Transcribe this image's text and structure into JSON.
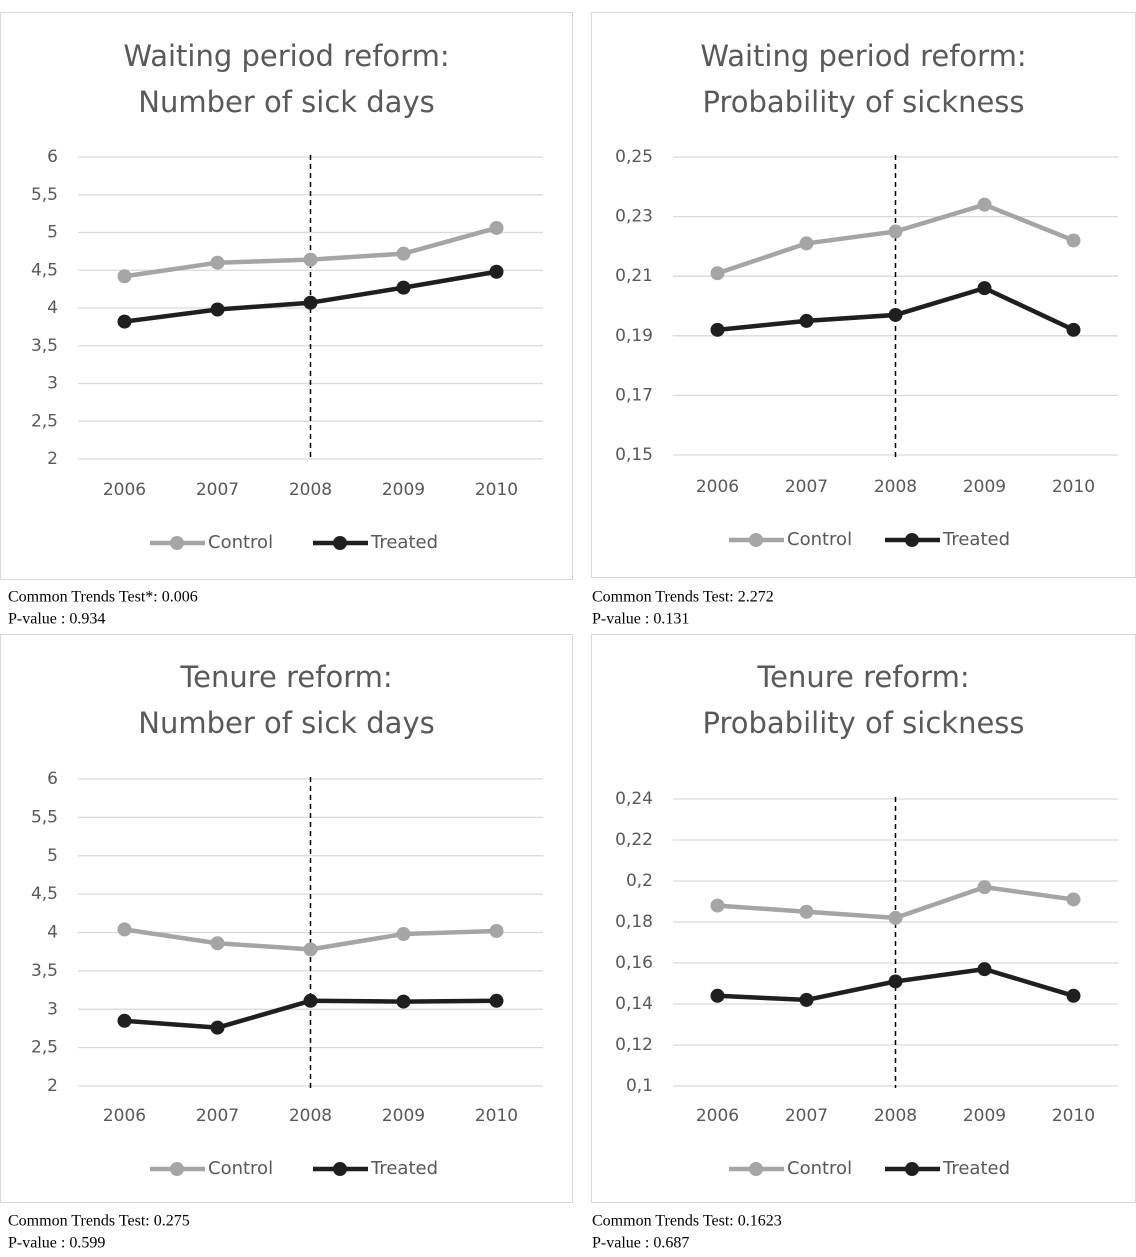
{
  "chart_data": [
    {
      "type": "line",
      "title": [
        "Waiting period reform:",
        "Number of sick days"
      ],
      "categories": [
        "2006",
        "2007",
        "2008",
        "2009",
        "2010"
      ],
      "series": [
        {
          "name": "Control",
          "color": "#a5a5a5",
          "values": [
            4.42,
            4.6,
            4.64,
            4.72,
            5.06
          ]
        },
        {
          "name": "Treated",
          "color": "#1f1f1f",
          "values": [
            3.82,
            3.98,
            4.07,
            4.27,
            4.48
          ]
        }
      ],
      "ylim": [
        2,
        6
      ],
      "yticks": [
        2,
        {
          "value": 2.5,
          "label": "2,5"
        },
        3,
        {
          "value": 3.5,
          "label": "3,5"
        },
        4,
        {
          "value": 4.5,
          "label": "4,5"
        },
        5,
        {
          "value": 5.5,
          "label": "5,5"
        },
        6
      ],
      "grid": true,
      "legend": "bottom",
      "vline": "2008",
      "notes": [
        "Common Trends Test*: 0.006",
        "P-value : 0.934"
      ]
    },
    {
      "type": "line",
      "title": [
        "Waiting period reform:",
        "Probability of sickness"
      ],
      "categories": [
        "2006",
        "2007",
        "2008",
        "2009",
        "2010"
      ],
      "series": [
        {
          "name": "Control",
          "color": "#a5a5a5",
          "values": [
            0.211,
            0.221,
            0.225,
            0.234,
            0.222
          ]
        },
        {
          "name": "Treated",
          "color": "#1f1f1f",
          "values": [
            0.192,
            0.195,
            0.197,
            0.206,
            0.192
          ]
        }
      ],
      "ylim": [
        0.15,
        0.25
      ],
      "yticks": [
        {
          "value": 0.15,
          "label": "0,15"
        },
        {
          "value": 0.17,
          "label": "0,17"
        },
        {
          "value": 0.19,
          "label": "0,19"
        },
        {
          "value": 0.21,
          "label": "0,21"
        },
        {
          "value": 0.23,
          "label": "0,23"
        },
        {
          "value": 0.25,
          "label": "0,25"
        }
      ],
      "grid": true,
      "legend": "bottom",
      "vline": "2008",
      "notes": [
        "Common Trends Test: 2.272",
        "P-value : 0.131"
      ]
    },
    {
      "type": "line",
      "title": [
        "Tenure reform:",
        "Number of sick days"
      ],
      "categories": [
        "2006",
        "2007",
        "2008",
        "2009",
        "2010"
      ],
      "series": [
        {
          "name": "Control",
          "color": "#a5a5a5",
          "values": [
            4.04,
            3.86,
            3.78,
            3.98,
            4.02
          ]
        },
        {
          "name": "Treated",
          "color": "#1f1f1f",
          "values": [
            2.85,
            2.76,
            3.11,
            3.1,
            3.11
          ]
        }
      ],
      "ylim": [
        2,
        6
      ],
      "yticks": [
        2,
        {
          "value": 2.5,
          "label": "2,5"
        },
        3,
        {
          "value": 3.5,
          "label": "3,5"
        },
        4,
        {
          "value": 4.5,
          "label": "4,5"
        },
        5,
        {
          "value": 5.5,
          "label": "5,5"
        },
        6
      ],
      "grid": true,
      "legend": "bottom",
      "vline": "2008",
      "notes": [
        "Common Trends Test: 0.275",
        "P-value : 0.599"
      ]
    },
    {
      "type": "line",
      "title": [
        "Tenure reform:",
        "Probability of sickness"
      ],
      "categories": [
        "2006",
        "2007",
        "2008",
        "2009",
        "2010"
      ],
      "series": [
        {
          "name": "Control",
          "color": "#a5a5a5",
          "values": [
            0.188,
            0.185,
            0.182,
            0.197,
            0.191
          ]
        },
        {
          "name": "Treated",
          "color": "#1f1f1f",
          "values": [
            0.144,
            0.142,
            0.151,
            0.157,
            0.144
          ]
        }
      ],
      "ylim": [
        0.1,
        0.24
      ],
      "yticks": [
        {
          "value": 0.1,
          "label": "0,1"
        },
        {
          "value": 0.12,
          "label": "0,12"
        },
        {
          "value": 0.14,
          "label": "0,14"
        },
        {
          "value": 0.16,
          "label": "0,16"
        },
        {
          "value": 0.18,
          "label": "0,18"
        },
        {
          "value": 0.2,
          "label": "0,2"
        },
        {
          "value": 0.22,
          "label": "0,22"
        },
        {
          "value": 0.24,
          "label": "0,24"
        }
      ],
      "grid": true,
      "legend": "bottom",
      "vline": "2008",
      "notes": [
        "Common Trends Test: 0.1623",
        "P-value : 0.687"
      ]
    }
  ]
}
